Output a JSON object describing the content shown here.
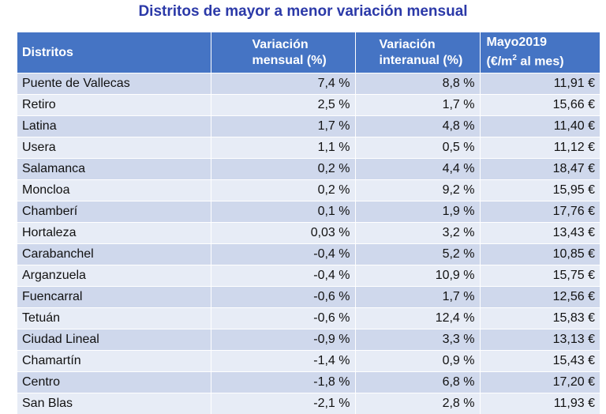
{
  "title": "Distritos de mayor a menor variación mensual",
  "headers": {
    "distritos": "Distritos",
    "mensual_line1": "Variación",
    "mensual_line2": "mensual (%)",
    "interanual_line1": "Variación",
    "interanual_line2": "interanual (%)",
    "precio_line1": "Mayo2019",
    "precio_line2a": "(€/m",
    "precio_sup": "2",
    "precio_line2b": " al mes)"
  },
  "colors": {
    "header_bg": "#4574c4",
    "row_odd": "#cfd8ec",
    "row_even": "#e7ecf6",
    "negative_text": "#b51b1b",
    "title_text": "#2b39a8"
  },
  "chart_data": {
    "type": "table",
    "title": "Distritos de mayor a menor variación mensual",
    "columns": [
      "Distritos",
      "Variación mensual (%)",
      "Variación interanual (%)",
      "Mayo2019 (€/m2 al mes)"
    ],
    "rows": [
      [
        "Puente de Vallecas",
        "7,4 %",
        "8,8 %",
        "11,91 €"
      ],
      [
        "Retiro",
        "2,5 %",
        "1,7 %",
        "15,66 €"
      ],
      [
        "Latina",
        "1,7 %",
        "4,8 %",
        "11,40 €"
      ],
      [
        "Usera",
        "1,1 %",
        "0,5 %",
        "11,12 €"
      ],
      [
        "Salamanca",
        "0,2 %",
        "4,4 %",
        "18,47 €"
      ],
      [
        "Moncloa",
        "0,2 %",
        "9,2 %",
        "15,95 €"
      ],
      [
        "Chamberí",
        "0,1 %",
        "1,9 %",
        "17,76 €"
      ],
      [
        "Hortaleza",
        "0,03 %",
        "3,2 %",
        "13,43 €"
      ],
      [
        "Carabanchel",
        "-0,4 %",
        "5,2 %",
        "10,85 €"
      ],
      [
        "Arganzuela",
        "-0,4 %",
        "10,9 %",
        "15,75 €"
      ],
      [
        "Fuencarral",
        "-0,6 %",
        "1,7 %",
        "12,56 €"
      ],
      [
        "Tetuán",
        "-0,6 %",
        "12,4 %",
        "15,83 €"
      ],
      [
        "Ciudad Lineal",
        "-0,9 %",
        "3,3 %",
        "13,13 €"
      ],
      [
        "Chamartín",
        "-1,4 %",
        "0,9 %",
        "15,43 €"
      ],
      [
        "Centro",
        "-1,8 %",
        "6,8 %",
        "17,20 €"
      ],
      [
        "San Blas",
        "-2,1 %",
        "2,8 %",
        "11,93 €"
      ]
    ]
  }
}
